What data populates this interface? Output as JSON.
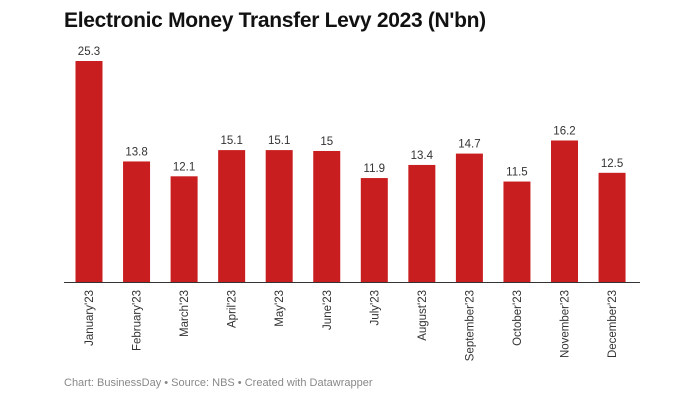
{
  "chart_data": {
    "type": "bar",
    "title": "Electronic Money Transfer Levy 2023 (N'bn)",
    "categories": [
      "January'23",
      "February'23",
      "March'23",
      "April'23",
      "May'23",
      "June'23",
      "July'23",
      "August'23",
      "September'23",
      "October'23",
      "November'23",
      "December'23"
    ],
    "values": [
      25.3,
      13.8,
      12.1,
      15.1,
      15.1,
      15,
      11.9,
      13.4,
      14.7,
      11.5,
      16.2,
      12.5
    ],
    "value_labels": [
      "25.3",
      "13.8",
      "12.1",
      "15.1",
      "15.1",
      "15",
      "11.9",
      "13.4",
      "14.7",
      "11.5",
      "16.2",
      "12.5"
    ],
    "xlabel": "",
    "ylabel": "",
    "ylim": [
      0,
      25.3
    ],
    "grid": false,
    "bar_color": "#c91e1f"
  },
  "footer": "Chart: BusinessDay • Source: NBS • Created with Datawrapper"
}
